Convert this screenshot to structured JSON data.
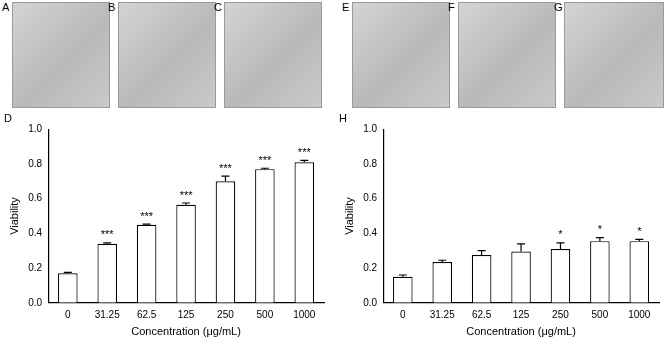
{
  "panels": [
    "A",
    "B",
    "C",
    "E",
    "F",
    "G"
  ],
  "chart_data": [
    {
      "type": "bar",
      "title": "D",
      "categories": [
        "0",
        "31.25",
        "62.5",
        "125",
        "250",
        "500",
        "1000"
      ],
      "values": [
        0.17,
        0.34,
        0.45,
        0.565,
        0.7,
        0.77,
        0.81
      ],
      "errors": [
        0.005,
        0.005,
        0.003,
        0.01,
        0.03,
        0.005,
        0.01
      ],
      "annotations": [
        null,
        "***",
        "***",
        "***",
        "***",
        "***",
        "***"
      ],
      "color": "#ffffff",
      "x_label": "Concentration (μg/mL)",
      "y_label": "Viability",
      "ylim": [
        0,
        1
      ],
      "yticks": [
        {
          "value": 0,
          "label": "0.0"
        },
        0.2,
        0.4,
        0.6,
        0.8,
        {
          "value": 1,
          "label": "1.0"
        }
      ],
      "grid": false
    },
    {
      "type": "bar",
      "title": "H",
      "categories": [
        "0",
        "31.25",
        "62.5",
        "125",
        "250",
        "500",
        "1000"
      ],
      "values": [
        0.15,
        0.235,
        0.275,
        0.295,
        0.31,
        0.355,
        0.355
      ],
      "errors": [
        0.01,
        0.01,
        0.025,
        0.045,
        0.035,
        0.02,
        0.01
      ],
      "annotations": [
        null,
        null,
        null,
        null,
        "*",
        "*",
        "*"
      ],
      "color": "#ffffff",
      "x_label": "Concentration (μg/mL)",
      "y_label": "Viability",
      "ylim": [
        0,
        1
      ],
      "yticks": [
        {
          "value": 0,
          "label": "0.0"
        },
        0.2,
        0.4,
        0.6,
        0.8,
        {
          "value": 1,
          "label": "1.0"
        }
      ],
      "grid": false
    }
  ]
}
